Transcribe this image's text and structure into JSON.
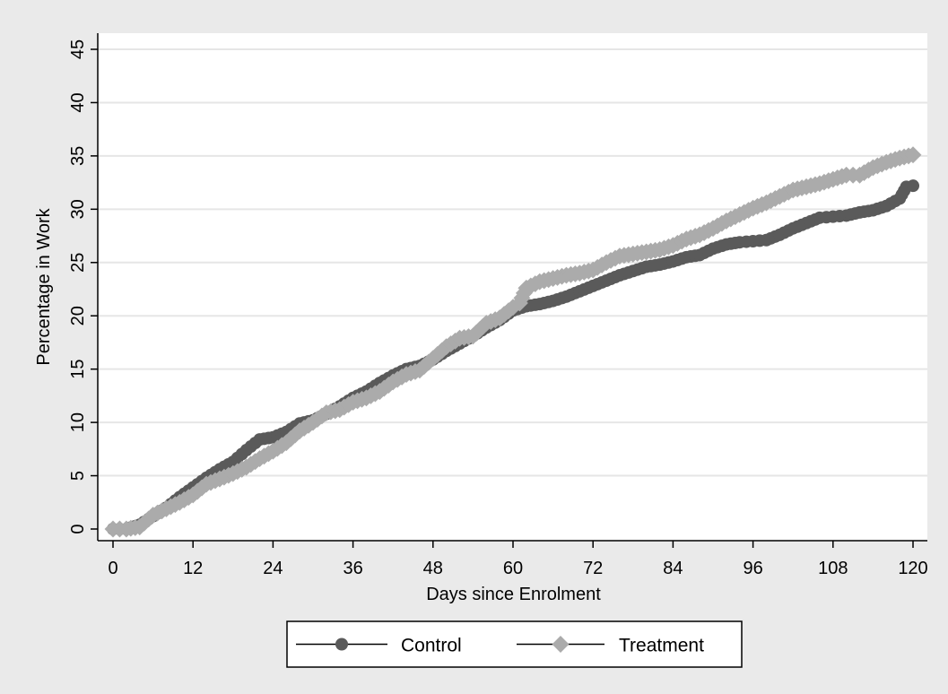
{
  "chart_data": {
    "type": "line",
    "title": "",
    "xlabel": "Days since Enrolment",
    "ylabel": "Percentage in Work",
    "xlim": [
      0,
      120
    ],
    "ylim": [
      0,
      45
    ],
    "x_ticks": [
      0,
      12,
      24,
      36,
      48,
      60,
      72,
      84,
      96,
      108,
      120
    ],
    "y_ticks": [
      0,
      5,
      10,
      15,
      20,
      25,
      30,
      35,
      40,
      45
    ],
    "grid": "horizontal",
    "legend_position": "bottom",
    "background_color": "#eaeaea",
    "plot_background_color": "#ffffff",
    "gridline_color": "#e6e6e6",
    "series": [
      {
        "name": "Control",
        "marker": "circle",
        "color": "#5a5a5a",
        "points": [
          [
            0,
            0
          ],
          [
            2,
            0
          ],
          [
            4,
            0.4
          ],
          [
            6,
            1.2
          ],
          [
            8,
            2.0
          ],
          [
            10,
            3.0
          ],
          [
            12,
            3.9
          ],
          [
            14,
            4.8
          ],
          [
            16,
            5.6
          ],
          [
            18,
            6.3
          ],
          [
            20,
            7.4
          ],
          [
            22,
            8.4
          ],
          [
            24,
            8.6
          ],
          [
            26,
            9.1
          ],
          [
            28,
            9.9
          ],
          [
            30,
            10.2
          ],
          [
            32,
            10.8
          ],
          [
            34,
            11.5
          ],
          [
            36,
            12.3
          ],
          [
            38,
            12.9
          ],
          [
            40,
            13.7
          ],
          [
            42,
            14.4
          ],
          [
            44,
            15.0
          ],
          [
            46,
            15.3
          ],
          [
            48,
            15.9
          ],
          [
            50,
            16.7
          ],
          [
            52,
            17.4
          ],
          [
            54,
            18.1
          ],
          [
            56,
            18.9
          ],
          [
            58,
            19.6
          ],
          [
            60,
            20.5
          ],
          [
            62,
            20.9
          ],
          [
            64,
            21.1
          ],
          [
            66,
            21.4
          ],
          [
            68,
            21.8
          ],
          [
            70,
            22.3
          ],
          [
            72,
            22.8
          ],
          [
            74,
            23.3
          ],
          [
            76,
            23.8
          ],
          [
            78,
            24.2
          ],
          [
            80,
            24.6
          ],
          [
            82,
            24.8
          ],
          [
            84,
            25.1
          ],
          [
            86,
            25.5
          ],
          [
            88,
            25.7
          ],
          [
            90,
            26.3
          ],
          [
            92,
            26.7
          ],
          [
            94,
            26.9
          ],
          [
            96,
            27.0
          ],
          [
            98,
            27.1
          ],
          [
            100,
            27.6
          ],
          [
            102,
            28.2
          ],
          [
            104,
            28.7
          ],
          [
            106,
            29.2
          ],
          [
            108,
            29.3
          ],
          [
            110,
            29.4
          ],
          [
            112,
            29.7
          ],
          [
            114,
            29.9
          ],
          [
            116,
            30.3
          ],
          [
            118,
            31.0
          ],
          [
            119,
            32.1
          ],
          [
            120,
            32.2
          ]
        ]
      },
      {
        "name": "Treatment",
        "marker": "diamond",
        "color": "#ababab",
        "points": [
          [
            0,
            0
          ],
          [
            2,
            0
          ],
          [
            4,
            0.2
          ],
          [
            6,
            1.3
          ],
          [
            8,
            1.9
          ],
          [
            10,
            2.5
          ],
          [
            12,
            3.2
          ],
          [
            14,
            4.2
          ],
          [
            16,
            4.7
          ],
          [
            18,
            5.2
          ],
          [
            20,
            5.8
          ],
          [
            22,
            6.6
          ],
          [
            24,
            7.3
          ],
          [
            26,
            8.1
          ],
          [
            28,
            9.2
          ],
          [
            30,
            10.0
          ],
          [
            32,
            10.9
          ],
          [
            34,
            11.2
          ],
          [
            36,
            11.9
          ],
          [
            38,
            12.3
          ],
          [
            40,
            12.9
          ],
          [
            42,
            13.8
          ],
          [
            44,
            14.5
          ],
          [
            46,
            14.9
          ],
          [
            48,
            16.0
          ],
          [
            50,
            17.1
          ],
          [
            52,
            17.9
          ],
          [
            54,
            18.1
          ],
          [
            56,
            19.3
          ],
          [
            58,
            19.8
          ],
          [
            60,
            20.8
          ],
          [
            61,
            21.2
          ],
          [
            62,
            22.6
          ],
          [
            64,
            23.2
          ],
          [
            66,
            23.5
          ],
          [
            68,
            23.8
          ],
          [
            70,
            24.0
          ],
          [
            72,
            24.3
          ],
          [
            74,
            25.0
          ],
          [
            76,
            25.6
          ],
          [
            78,
            25.8
          ],
          [
            80,
            26.0
          ],
          [
            82,
            26.2
          ],
          [
            84,
            26.6
          ],
          [
            86,
            27.2
          ],
          [
            88,
            27.6
          ],
          [
            90,
            28.2
          ],
          [
            92,
            28.9
          ],
          [
            94,
            29.5
          ],
          [
            96,
            30.1
          ],
          [
            98,
            30.6
          ],
          [
            100,
            31.2
          ],
          [
            102,
            31.8
          ],
          [
            104,
            32.1
          ],
          [
            106,
            32.4
          ],
          [
            108,
            32.8
          ],
          [
            110,
            33.2
          ],
          [
            112,
            33.2
          ],
          [
            114,
            33.9
          ],
          [
            116,
            34.4
          ],
          [
            118,
            34.8
          ],
          [
            120,
            35.1
          ]
        ]
      }
    ]
  }
}
